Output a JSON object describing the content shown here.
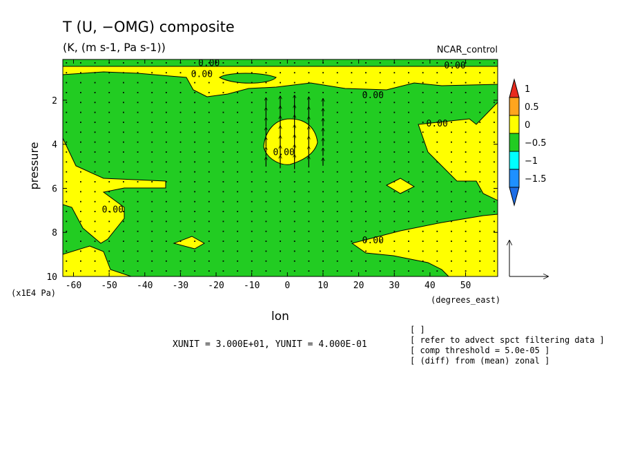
{
  "chart_data": {
    "type": "contour",
    "title": "T (U, −OMG) composite",
    "subtitle": "(K, (m s-1, Pa s-1))",
    "run_label": "NCAR_control",
    "xlabel": "lon",
    "x_unit": "(degrees_east)",
    "ylabel": "pressure",
    "y_unit": "(x1E4 Pa)",
    "xlim": [
      -63,
      59
    ],
    "ylim": [
      10,
      0.15
    ],
    "x_ticks": [
      "-60",
      "-50",
      "-40",
      "-30",
      "-20",
      "-10",
      "0",
      "10",
      "20",
      "30",
      "40",
      "50"
    ],
    "x_tick_values": [
      -60,
      -50,
      -40,
      -30,
      -20,
      -10,
      0,
      10,
      20,
      30,
      40,
      50
    ],
    "y_ticks": [
      "2",
      "4",
      "6",
      "8",
      "10"
    ],
    "y_tick_values": [
      2,
      4,
      6,
      8,
      10
    ],
    "contour_label": "0.00",
    "contour_labels_positions": [
      {
        "text": "0.00",
        "lon": -22,
        "p": 0.45
      },
      {
        "text": "0.00",
        "lon": -24,
        "p": 0.95
      },
      {
        "text": "0.00",
        "lon": 47,
        "p": 0.55
      },
      {
        "text": "0.00",
        "lon": 24,
        "p": 1.9
      },
      {
        "text": "0.00",
        "lon": 42,
        "p": 3.2
      },
      {
        "text": "0.00",
        "lon": -1,
        "p": 4.5
      },
      {
        "text": "0.00",
        "lon": -49,
        "p": 7.1
      },
      {
        "text": "0.00",
        "lon": 24,
        "p": 8.5
      }
    ],
    "legend": {
      "levels": [
        "1",
        "0.5",
        "0",
        "−0.5",
        "−1",
        "−1.5"
      ],
      "colors": [
        "#e82a1e",
        "#ffa51e",
        "#ffff00",
        "#22cc22",
        "#00ffff",
        "#1e90ff",
        "#1e6ee6"
      ]
    },
    "vector_units": "XUNIT = 3.000E+01, YUNIT = 4.000E-01",
    "xunit": 30.0,
    "yunit": 0.4,
    "notes": [
      "[  ]",
      "[ refer to advect spct filtering data ]",
      "[ comp threshold = 5.0e-05 ]",
      "[ (diff) from (mean) zonal ]"
    ],
    "regions": {
      "positive_fill": "#ffff00",
      "negative_fill": "#22cc22",
      "upper_band_top": 0.15,
      "upper_band_bottom": 0.9,
      "central_updraft_lon": [
        -8,
        10
      ],
      "central_updraft_p": [
        3.0,
        5.2
      ]
    },
    "colors": {
      "positive": "#ffff00",
      "negative": "#22cc22",
      "line": "#000000"
    }
  }
}
